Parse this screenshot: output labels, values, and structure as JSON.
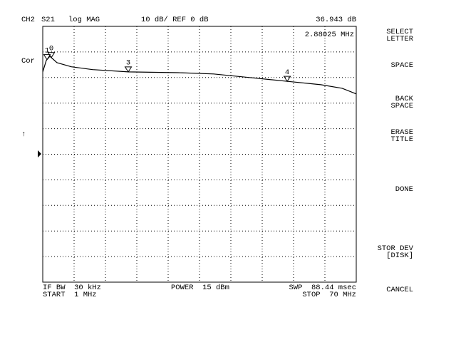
{
  "chart_data": {
    "type": "line",
    "x": [
      1,
      1.78,
      2.57,
      4.14,
      7.27,
      11.98,
      19.82,
      30.8,
      38.6,
      46.5,
      54.3,
      62.2,
      66.9,
      70
    ],
    "series": [
      {
        "color": "#000000",
        "values": [
          32.2,
          36.7,
          38.3,
          35.8,
          34.2,
          33.1,
          32.2,
          31.9,
          31.4,
          30.0,
          28.6,
          27.2,
          25.8,
          23.6
        ]
      }
    ],
    "xlim": [
      1,
      70
    ],
    "ylim": [
      -50,
      50
    ],
    "xticks": [
      1,
      7.9,
      14.8,
      21.7,
      28.6,
      35.5,
      42.4,
      49.3,
      56.2,
      63.1,
      70
    ],
    "yticks": [
      -50,
      -40,
      -30,
      -20,
      -10,
      0,
      10,
      20,
      30,
      40,
      50
    ],
    "grid": true,
    "markers": [
      {
        "label": "1",
        "x": 1.94
      },
      {
        "label": "0",
        "x": 2.88025
      },
      {
        "label": "3",
        "x": 19.82
      },
      {
        "label": "4",
        "x": 54.8
      }
    ]
  },
  "header": {
    "channel": "CH2",
    "param": "S21",
    "format": "log MAG",
    "scale": "10 dB/ REF 0 dB",
    "readout": "36.943 dB",
    "marker_freq": "2.88025 MHz"
  },
  "left": {
    "cor": "Cor",
    "arrow": "↑"
  },
  "footer": {
    "ifbw": "IF BW  30 kHz",
    "start": "START  1 MHz",
    "power": "POWER  15 dBm",
    "sweep": "SWP  88.44 msec",
    "stop": "STOP  70 MHz"
  },
  "softkeys": [
    [
      "SELECT",
      "LETTER"
    ],
    [
      "SPACE"
    ],
    [
      "BACK",
      "SPACE"
    ],
    [
      "ERASE",
      "TITLE"
    ],
    [
      "DONE"
    ],
    [
      "STOR DEV",
      "[DISK]"
    ],
    [
      "CANCEL"
    ]
  ]
}
